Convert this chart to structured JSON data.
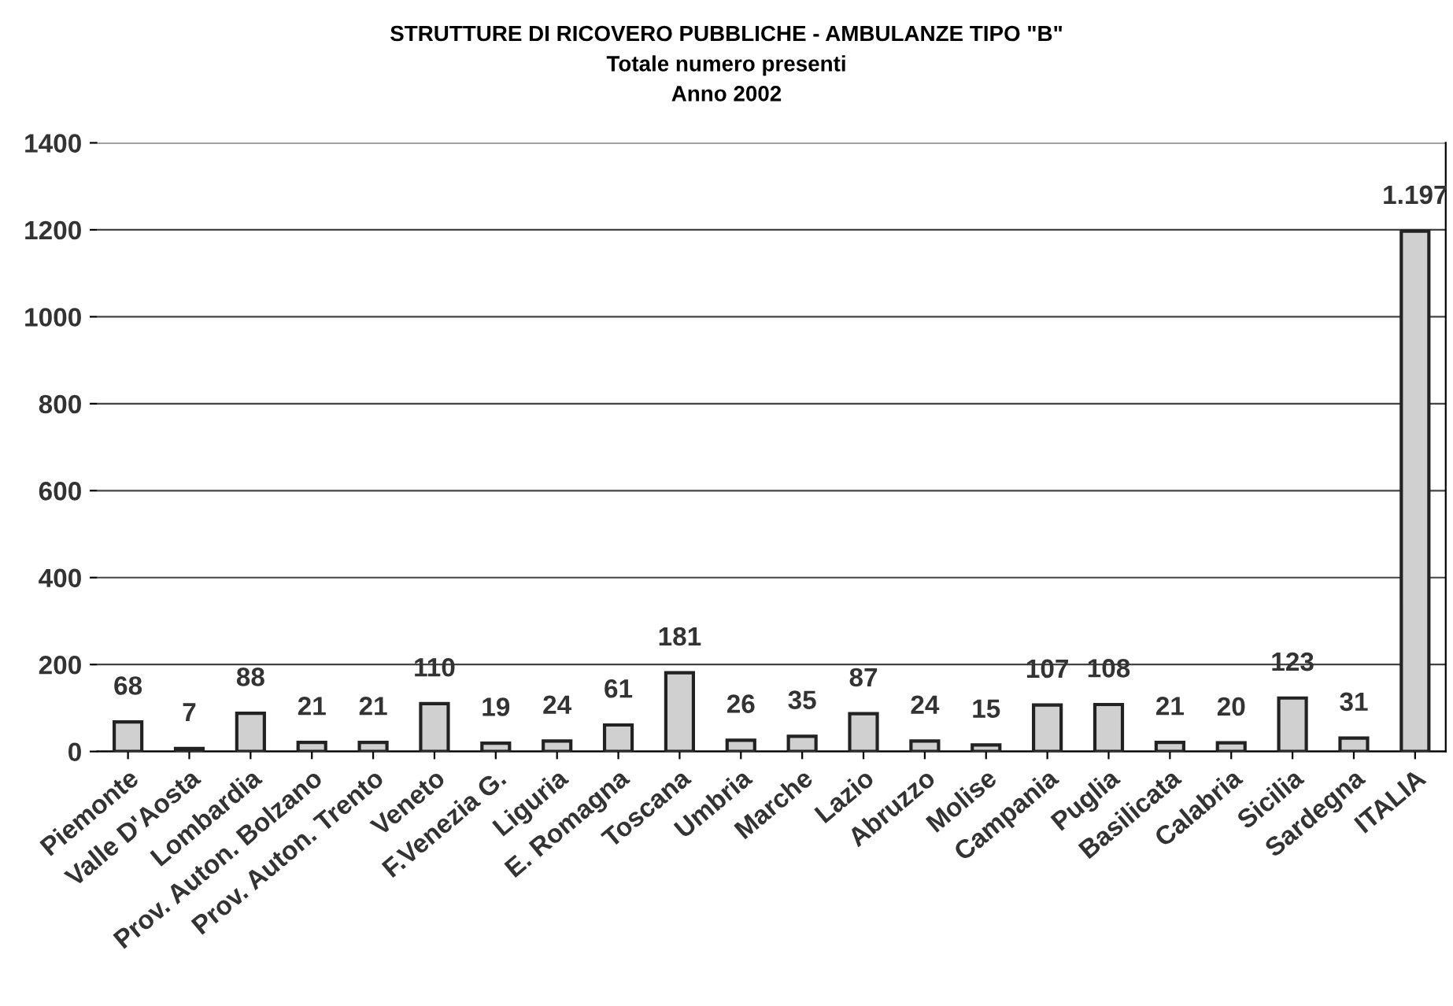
{
  "chart_data": {
    "type": "bar",
    "title": "STRUTTURE DI RICOVERO PUBBLICHE - AMBULANZE TIPO \"B\"",
    "subtitle": "Totale numero presenti\nAnno 2002",
    "categories": [
      "Piemonte",
      "Valle D'Aosta",
      "Lombardia",
      "Prov. Auton. Bolzano",
      "Prov. Auton. Trento",
      "Veneto",
      "F.Venezia G.",
      "Liguria",
      "E. Romagna",
      "Toscana",
      "Umbria",
      "Marche",
      "Lazio",
      "Abruzzo",
      "Molise",
      "Campania",
      "Puglia",
      "Basilicata",
      "Calabria",
      "Sicilia",
      "Sardegna",
      "ITALIA"
    ],
    "values": [
      68,
      7,
      88,
      21,
      21,
      110,
      19,
      24,
      61,
      181,
      26,
      35,
      87,
      24,
      15,
      107,
      108,
      21,
      20,
      123,
      31,
      1197
    ],
    "value_labels": [
      "68",
      "7",
      "88",
      "21",
      "21",
      "110",
      "19",
      "24",
      "61",
      "181",
      "26",
      "35",
      "87",
      "24",
      "15",
      "107",
      "108",
      "21",
      "20",
      "123",
      "31",
      "1.197"
    ],
    "color": "#d0d0d0",
    "ylim": [
      0,
      1400
    ],
    "yticks": [
      0,
      200,
      400,
      600,
      800,
      1000,
      1200,
      1400
    ],
    "grid": "y"
  }
}
